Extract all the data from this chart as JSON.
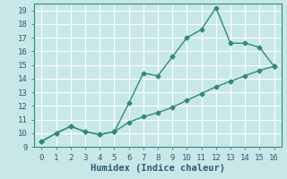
{
  "xlabel": "Humidex (Indice chaleur)",
  "line1_x": [
    0,
    1,
    2,
    3,
    4,
    5,
    6,
    7,
    8,
    9,
    10,
    11,
    12,
    13,
    14,
    15,
    16
  ],
  "line1_y": [
    9.4,
    10.0,
    10.5,
    10.1,
    9.9,
    10.1,
    12.2,
    14.4,
    14.2,
    15.6,
    17.0,
    17.6,
    19.2,
    16.6,
    16.6,
    16.3,
    14.9
  ],
  "line2_x": [
    0,
    1,
    2,
    3,
    4,
    5,
    6,
    7,
    8,
    9,
    10,
    11,
    12,
    13,
    14,
    15,
    16
  ],
  "line2_y": [
    9.4,
    10.0,
    10.5,
    10.1,
    9.9,
    10.1,
    10.8,
    11.2,
    11.5,
    11.9,
    12.4,
    12.9,
    13.4,
    13.8,
    14.2,
    14.6,
    14.9
  ],
  "line_color": "#2d8b77",
  "bg_color": "#c8e8e8",
  "grid_color": "#ffffff",
  "text_color": "#2d5a7a",
  "xlim": [
    -0.5,
    16.5
  ],
  "ylim": [
    9,
    19.5
  ],
  "yticks": [
    9,
    10,
    11,
    12,
    13,
    14,
    15,
    16,
    17,
    18,
    19
  ],
  "xticks": [
    0,
    1,
    2,
    3,
    4,
    5,
    6,
    7,
    8,
    9,
    10,
    11,
    12,
    13,
    14,
    15,
    16
  ],
  "marker": "D",
  "marker_size": 2.5,
  "line_width": 1.0,
  "tick_font_size": 6.5,
  "label_font_size": 7.5
}
